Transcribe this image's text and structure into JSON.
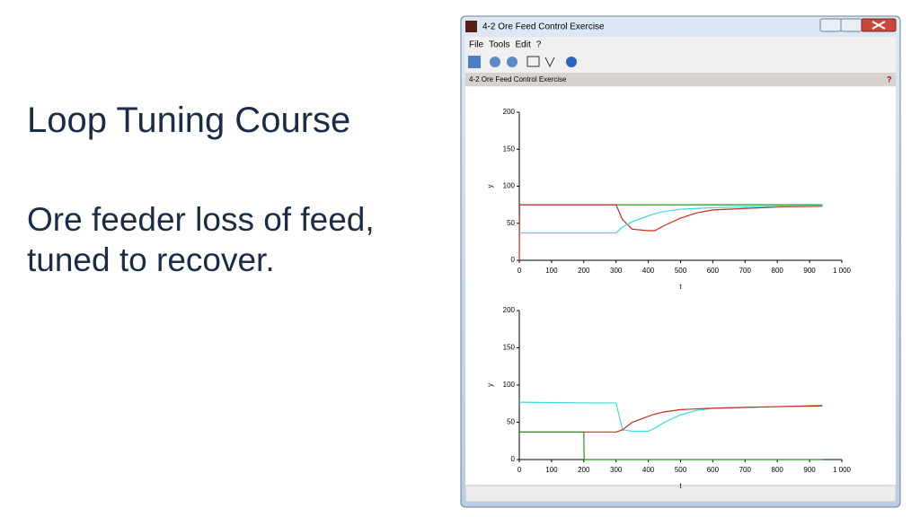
{
  "slide": {
    "title": "Loop Tuning Course",
    "body": "Ore feeder loss of feed, tuned to recover."
  },
  "window": {
    "title": "4-2 Ore Feed Control Exercise",
    "menu": [
      "File",
      "Tools",
      "Edit",
      "?"
    ],
    "panel_title": "4-2 Ore Feed Control Exercise",
    "help": "?"
  },
  "chart_data": [
    {
      "type": "line",
      "xlabel": "t",
      "ylabel": "y",
      "x": [
        0,
        1,
        200,
        300,
        320,
        350,
        400,
        420,
        450,
        500,
        550,
        600,
        700,
        800,
        940
      ],
      "series": [
        {
          "color": "#1f9a1f",
          "values": [
            75,
            75,
            75,
            75,
            75,
            75,
            75,
            75,
            75,
            75,
            75,
            75,
            75,
            75,
            75
          ]
        },
        {
          "color": "#cc2a22",
          "values": [
            0,
            75,
            75,
            75,
            55,
            42,
            40,
            40,
            47,
            57,
            64,
            68,
            70,
            72,
            73
          ]
        },
        {
          "color": "#3fd8dc",
          "values": [
            37,
            37,
            37,
            37,
            45,
            52,
            60,
            63,
            66,
            69,
            70,
            71,
            72,
            73,
            74
          ]
        }
      ],
      "xlim": [
        0,
        1000
      ],
      "xticks": [
        0,
        100,
        200,
        300,
        400,
        500,
        600,
        700,
        800,
        900,
        {
          "value": 1000,
          "label": "1 000"
        }
      ],
      "ylim": [
        0,
        200
      ],
      "yticks": [
        0,
        50,
        100,
        150,
        200
      ]
    },
    {
      "type": "line",
      "xlabel": "t",
      "ylabel": "y",
      "x": [
        0,
        1,
        200,
        201,
        300,
        320,
        350,
        400,
        420,
        450,
        500,
        550,
        600,
        700,
        800,
        940
      ],
      "series": [
        {
          "color": "#3fd8dc",
          "values": [
            77,
            77,
            76,
            76,
            76,
            40,
            38,
            38,
            42,
            50,
            60,
            66,
            69,
            70,
            71,
            73
          ]
        },
        {
          "color": "#cc2a22",
          "values": [
            37,
            37,
            37,
            37,
            37,
            40,
            50,
            58,
            61,
            64,
            67,
            68,
            69,
            70,
            71,
            72
          ]
        },
        {
          "color": "#1f9a1f",
          "values": [
            37,
            37,
            37,
            0,
            0,
            0,
            0,
            0,
            0,
            0,
            0,
            0,
            0,
            0,
            0,
            0
          ]
        }
      ],
      "xlim": [
        0,
        1000
      ],
      "xticks": [
        0,
        100,
        200,
        300,
        400,
        500,
        600,
        700,
        800,
        900,
        {
          "value": 1000,
          "label": "1 000"
        }
      ],
      "ylim": [
        0,
        200
      ],
      "yticks": [
        0,
        50,
        100,
        150,
        200
      ]
    }
  ]
}
